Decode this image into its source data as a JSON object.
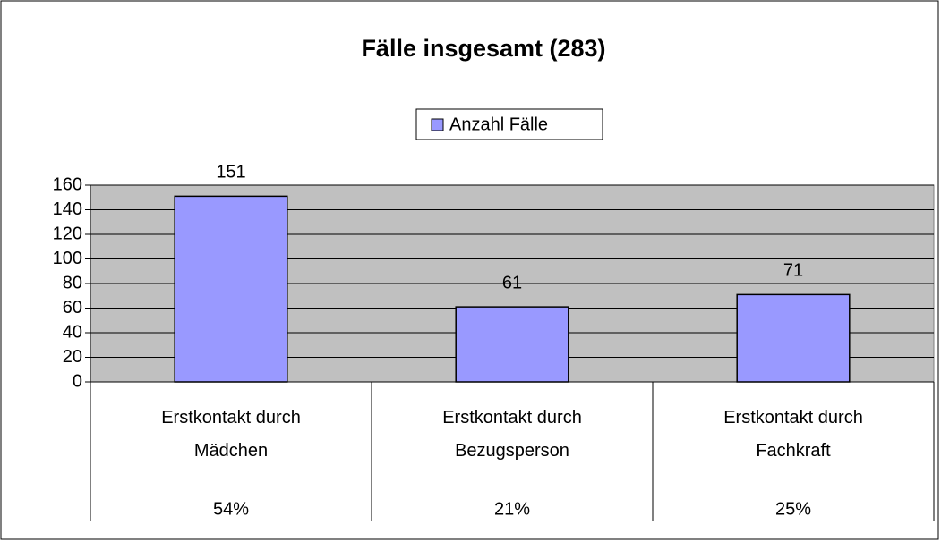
{
  "chart_data": {
    "type": "bar",
    "title": "Fälle insgesamt (283)",
    "categories": [
      "Erstkontakt durch Mädchen",
      "Erstkontakt durch Bezugsperson",
      "Erstkontakt durch Fachkraft"
    ],
    "series": [
      {
        "name": "Anzahl Fälle",
        "color": "#9999ff",
        "values": [
          151,
          61,
          71
        ]
      }
    ],
    "shares": [
      "54%",
      "21%",
      "25%"
    ],
    "ylim": [
      0,
      160
    ],
    "yticks": [
      0,
      20,
      40,
      60,
      80,
      100,
      120,
      140,
      160
    ],
    "grid": true,
    "legend": "top"
  }
}
